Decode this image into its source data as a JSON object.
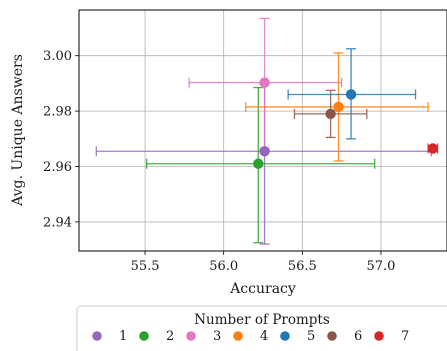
{
  "chart_data": {
    "type": "scatter",
    "title": "",
    "xlabel": "Accuracy",
    "ylabel": "Avg. Unique Answers",
    "xlim": [
      55.08,
      57.42
    ],
    "ylim": [
      2.9295,
      3.0165
    ],
    "x_ticks": [
      55.5,
      56.0,
      56.5,
      57.0
    ],
    "x_tick_labels": [
      "55.5",
      "56.0",
      "56.5",
      "57.0"
    ],
    "y_ticks": [
      2.94,
      2.96,
      2.98,
      3.0
    ],
    "y_tick_labels": [
      "2.94",
      "2.96",
      "2.98",
      "3.00"
    ],
    "grid": true,
    "error_bars": true,
    "legend": {
      "title": "Number of Prompts",
      "placement": "bottom-center"
    },
    "series": [
      {
        "name": "1",
        "color": "#9467bd",
        "x": 56.26,
        "y": 2.9655,
        "x_err": [
          55.19,
          57.32
        ],
        "y_err": [
          2.932,
          2.9895
        ]
      },
      {
        "name": "2",
        "color": "#2ca02c",
        "x": 56.22,
        "y": 2.961,
        "x_err": [
          55.51,
          56.96
        ],
        "y_err": [
          2.9325,
          2.9885
        ]
      },
      {
        "name": "3",
        "color": "#e377c2",
        "x": 56.26,
        "y": 2.9903,
        "x_err": [
          55.78,
          56.75
        ],
        "y_err": [
          2.9665,
          3.0135
        ]
      },
      {
        "name": "4",
        "color": "#ff7f0e",
        "x": 56.73,
        "y": 2.9815,
        "x_err": [
          56.14,
          57.3
        ],
        "y_err": [
          2.962,
          3.001
        ]
      },
      {
        "name": "5",
        "color": "#1f77b4",
        "x": 56.81,
        "y": 2.986,
        "x_err": [
          56.41,
          57.22
        ],
        "y_err": [
          2.97,
          3.0025
        ]
      },
      {
        "name": "6",
        "color": "#8c564b",
        "x": 56.68,
        "y": 2.979,
        "x_err": [
          56.45,
          56.91
        ],
        "y_err": [
          2.9705,
          2.9875
        ]
      },
      {
        "name": "7",
        "color": "#d62728",
        "x": 57.33,
        "y": 2.9665,
        "x_err": [
          57.3,
          57.36
        ],
        "y_err": [
          2.9655,
          2.9675
        ]
      }
    ]
  }
}
